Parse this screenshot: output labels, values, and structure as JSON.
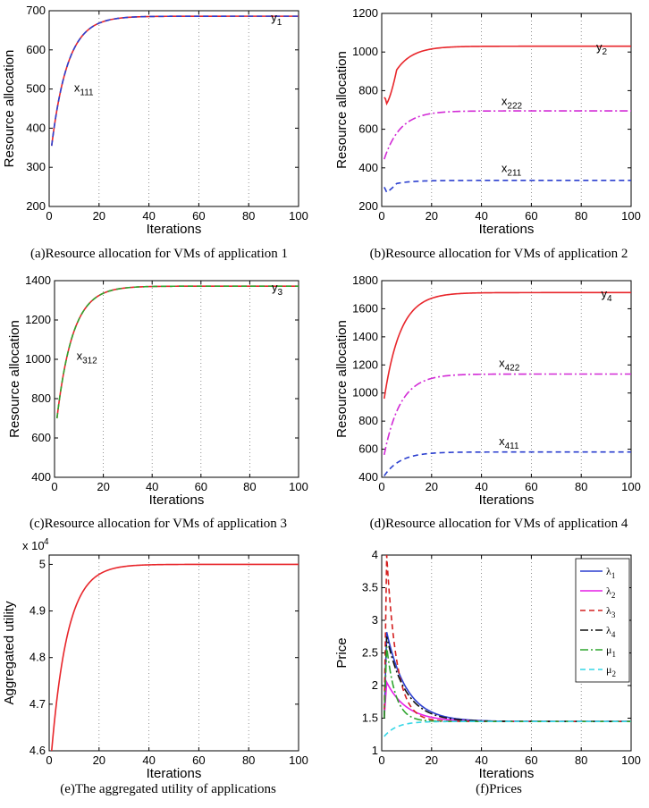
{
  "figure_title": "",
  "chart_data": [
    {
      "id": "a",
      "type": "line",
      "caption": "(a)Resource allocation for VMs of application 1",
      "xlabel": "Iterations",
      "ylabel": "Resource allocation",
      "xlim": [
        0,
        100
      ],
      "ylim": [
        200,
        700
      ],
      "xticks": [
        0,
        20,
        40,
        60,
        80,
        100
      ],
      "yticks": [
        200,
        300,
        400,
        500,
        600,
        700
      ],
      "grid": "vertical-dotted",
      "series": [
        {
          "name": "y1",
          "color": "#e8262b",
          "dash": "solid",
          "start": 355,
          "end": 686,
          "tau": 6.5
        },
        {
          "name": "x111",
          "color": "#2b3fcf",
          "dash": "dashed",
          "start": 355,
          "end": 686,
          "tau": 6.5
        }
      ],
      "annotations": [
        {
          "main": "y",
          "sub": "1",
          "x": 89,
          "y": 673
        },
        {
          "main": "x",
          "sub": "111",
          "x": 10,
          "y": 493
        }
      ]
    },
    {
      "id": "b",
      "type": "line",
      "caption": "(b)Resource allocation for VMs of application 2",
      "xlabel": "Iterations",
      "ylabel": "Resource allocation",
      "xlim": [
        0,
        100
      ],
      "ylim": [
        200,
        1200
      ],
      "xticks": [
        0,
        20,
        40,
        60,
        80,
        100
      ],
      "yticks": [
        200,
        400,
        600,
        800,
        1000,
        1200
      ],
      "grid": "vertical-dotted",
      "series": [
        {
          "name": "y2",
          "color": "#e8262b",
          "dash": "solid",
          "start": 765,
          "end": 1030,
          "tau": 6.5,
          "dip": 725
        },
        {
          "name": "x222",
          "color": "#d22bd6",
          "dash": "dashdot",
          "start": 445,
          "end": 695,
          "tau": 6.5
        },
        {
          "name": "x211",
          "color": "#2b3fcf",
          "dash": "dashed",
          "start": 300,
          "end": 335,
          "tau": 6.5,
          "dip": 270
        }
      ],
      "annotations": [
        {
          "main": "y",
          "sub": "2",
          "x": 86,
          "y": 1005
        },
        {
          "main": "x",
          "sub": "222",
          "x": 48,
          "y": 725
        },
        {
          "main": "x",
          "sub": "211",
          "x": 48,
          "y": 378
        }
      ]
    },
    {
      "id": "c",
      "type": "line",
      "caption": "(c)Resource allocation for VMs of application 3",
      "xlabel": "Iterations",
      "ylabel": "Resource allocation",
      "xlim": [
        0,
        100
      ],
      "ylim": [
        400,
        1400
      ],
      "xticks": [
        0,
        20,
        40,
        60,
        80,
        100
      ],
      "yticks": [
        400,
        600,
        800,
        1000,
        1200,
        1400
      ],
      "grid": "vertical-dotted",
      "series": [
        {
          "name": "y3",
          "color": "#e8262b",
          "dash": "solid",
          "start": 700,
          "end": 1372,
          "tau": 6.5
        },
        {
          "name": "x312",
          "color": "#2fa52f",
          "dash": "dashed",
          "start": 700,
          "end": 1372,
          "tau": 6.5
        }
      ],
      "annotations": [
        {
          "main": "y",
          "sub": "3",
          "x": 89,
          "y": 1345
        },
        {
          "main": "x",
          "sub": "312",
          "x": 9,
          "y": 998
        }
      ]
    },
    {
      "id": "d",
      "type": "line",
      "caption": "(d)Resource allocation for VMs of application 4",
      "xlabel": "Iterations",
      "ylabel": "Resource allocation",
      "xlim": [
        0,
        100
      ],
      "ylim": [
        400,
        1800
      ],
      "xticks": [
        0,
        20,
        40,
        60,
        80,
        100
      ],
      "yticks": [
        400,
        600,
        800,
        1000,
        1200,
        1400,
        1600,
        1800
      ],
      "grid": "vertical-dotted",
      "series": [
        {
          "name": "y4",
          "color": "#e8262b",
          "dash": "solid",
          "start": 960,
          "end": 1715,
          "tau": 6.5
        },
        {
          "name": "x422",
          "color": "#d22bd6",
          "dash": "dashdot",
          "start": 560,
          "end": 1135,
          "tau": 6.5
        },
        {
          "name": "x411",
          "color": "#2b3fcf",
          "dash": "dashed",
          "start": 410,
          "end": 580,
          "tau": 6.5
        }
      ],
      "annotations": [
        {
          "main": "y",
          "sub": "4",
          "x": 88,
          "y": 1680
        },
        {
          "main": "x",
          "sub": "422",
          "x": 47,
          "y": 1185
        },
        {
          "main": "x",
          "sub": "411",
          "x": 47,
          "y": 630
        }
      ]
    },
    {
      "id": "e",
      "type": "line",
      "caption": "(e)The aggregated utility of applications",
      "xlabel": "Iterations",
      "ylabel": "Aggregated utility",
      "y_multiplier": "x 10",
      "y_exponent": "4",
      "xlim": [
        0,
        100
      ],
      "ylim": [
        4.6,
        5.02
      ],
      "xticks": [
        0,
        20,
        40,
        60,
        80,
        100
      ],
      "yticks": [
        4.6,
        4.7,
        4.8,
        4.9,
        5
      ],
      "grid": "vertical-dotted",
      "series": [
        {
          "name": "aggregated utility",
          "color": "#e8262b",
          "dash": "solid",
          "start": 4.6,
          "end": 5.0,
          "tau": 6.5
        }
      ],
      "annotations": []
    },
    {
      "id": "f",
      "type": "line",
      "caption": "(f)Prices",
      "xlabel": "Iterations",
      "ylabel": "Price",
      "xlim": [
        0,
        100
      ],
      "ylim": [
        1,
        4
      ],
      "xticks": [
        0,
        20,
        40,
        60,
        80,
        100
      ],
      "yticks": [
        1,
        1.5,
        2,
        2.5,
        3,
        3.5,
        4
      ],
      "grid": "vertical-dotted",
      "legend": "top-right",
      "series": [
        {
          "name": "λ",
          "sub": "1",
          "color": "#2b3fcf",
          "dash": "solid",
          "peak": 2.82,
          "x0": 1.5,
          "end": 1.45,
          "tau": 8
        },
        {
          "name": "λ",
          "sub": "2",
          "color": "#e61fe6",
          "dash": "solid",
          "peak": 2.05,
          "x0": 1.5,
          "end": 1.45,
          "tau": 8
        },
        {
          "name": "λ",
          "sub": "3",
          "color": "#d42020",
          "dash": "dashed",
          "peak": 4.0,
          "x0": 1.5,
          "end": 1.45,
          "tau": 4
        },
        {
          "name": "λ",
          "sub": "4",
          "color": "#111111",
          "dash": "dashdot",
          "peak": 2.75,
          "x0": 1.5,
          "end": 1.45,
          "tau": 7.5
        },
        {
          "name": "μ",
          "sub": "1",
          "color": "#2fa52f",
          "dash": "dashdot",
          "peak": 2.6,
          "x0": 1.5,
          "end": 1.45,
          "tau": 3.5
        },
        {
          "name": "μ",
          "sub": "2",
          "color": "#35d6e6",
          "dash": "dashed",
          "start": 1.22,
          "end": 1.45,
          "tau": 5
        }
      ],
      "annotations": []
    }
  ]
}
